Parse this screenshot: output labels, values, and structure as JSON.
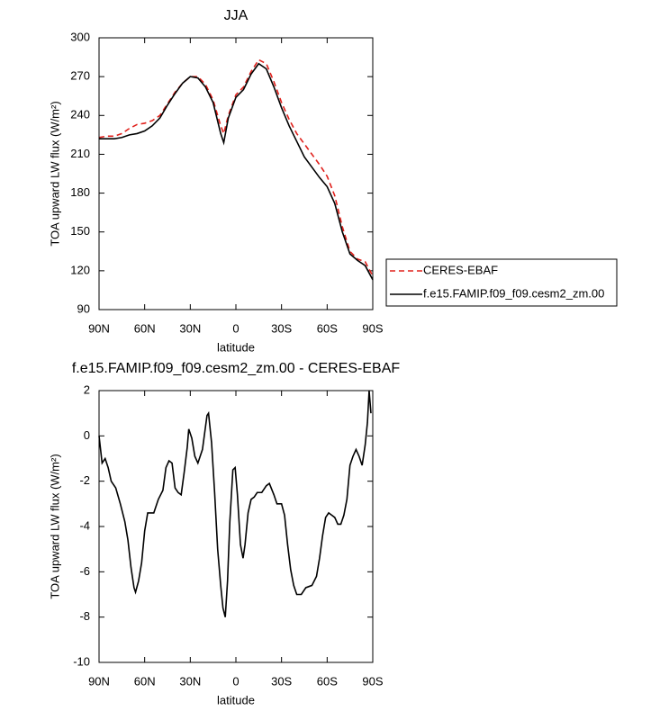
{
  "chart_data": [
    {
      "type": "line",
      "title": "JJA",
      "xlabel": "latitude",
      "ylabel": "TOA upward LW flux (W/m²)",
      "x": [
        90,
        85,
        80,
        75,
        70,
        65,
        60,
        55,
        50,
        45,
        40,
        35,
        30,
        25,
        20,
        15,
        10,
        8,
        5,
        0,
        -5,
        -10,
        -15,
        -20,
        -25,
        -30,
        -35,
        -40,
        -45,
        -50,
        -55,
        -60,
        -65,
        -70,
        -75,
        -80,
        -85,
        -90
      ],
      "xlim": [
        90,
        -90
      ],
      "xticks": [
        {
          "value": 90,
          "label": "90N"
        },
        {
          "value": 60,
          "label": "60N"
        },
        {
          "value": 30,
          "label": "30N"
        },
        0,
        {
          "value": -30,
          "label": "30S"
        },
        {
          "value": -60,
          "label": "60S"
        },
        {
          "value": -90,
          "label": "90S"
        }
      ],
      "ylim": [
        90,
        300
      ],
      "yticks": [
        90,
        120,
        150,
        180,
        210,
        240,
        270,
        300
      ],
      "legend": "right",
      "series": [
        {
          "name": "CERES-EBAF",
          "color": "#e0201b",
          "dash": true,
          "values": [
            223,
            224,
            224,
            226,
            230,
            233,
            234,
            236,
            240,
            249,
            258,
            265,
            270,
            270,
            264,
            252,
            232,
            226,
            240,
            256,
            262,
            274,
            283,
            280,
            266,
            250,
            237,
            226,
            218,
            210,
            202,
            193,
            178,
            154,
            135,
            129,
            127,
            116
          ]
        },
        {
          "name": "f.e15.FAMIP.f09_f09.cesm2_zm.00",
          "color": "#000000",
          "dash": false,
          "values": [
            222,
            222,
            222,
            223,
            225,
            226,
            228,
            232,
            238,
            248,
            257,
            265,
            270,
            269,
            262,
            250,
            226,
            219,
            238,
            254,
            260,
            272,
            280,
            276,
            262,
            246,
            232,
            220,
            208,
            200,
            192,
            185,
            172,
            150,
            133,
            128,
            124,
            113
          ]
        }
      ]
    },
    {
      "type": "line",
      "title": "f.e15.FAMIP.f09_f09.cesm2_zm.00 - CERES-EBAF",
      "xlabel": "latitude",
      "ylabel": "TOA upward LW flux (W/m²)",
      "x": [
        90,
        88,
        86,
        84,
        82,
        79,
        76,
        73,
        71,
        69,
        67,
        66,
        64,
        62,
        60,
        58,
        54,
        51,
        48,
        46,
        44,
        42,
        40,
        38,
        36,
        34,
        32,
        31,
        29,
        27,
        25,
        22,
        19,
        18,
        16,
        14,
        12,
        10,
        8.5,
        7,
        5.5,
        4,
        2,
        0.5,
        -1,
        -3,
        -4.7,
        -6,
        -8,
        -10,
        -12,
        -14,
        -17,
        -20,
        -22,
        -25,
        -27,
        -30,
        -32,
        -34,
        -36,
        -38,
        -40,
        -43,
        -46,
        -50,
        -53,
        -55,
        -57,
        -59,
        -61,
        -63,
        -65,
        -67,
        -69,
        -71,
        -73,
        -75,
        -77,
        -79,
        -81,
        -83,
        -85,
        -86.5,
        -87.6,
        -88.8
      ],
      "xlim": [
        90,
        -90
      ],
      "xticks": [
        {
          "value": 90,
          "label": "90N"
        },
        {
          "value": 60,
          "label": "60N"
        },
        {
          "value": 30,
          "label": "30N"
        },
        0,
        {
          "value": -30,
          "label": "30S"
        },
        {
          "value": -60,
          "label": "60S"
        },
        {
          "value": -90,
          "label": "90S"
        }
      ],
      "ylim": [
        -10,
        2
      ],
      "yticks": [
        -10,
        -8,
        -6,
        -4,
        -2,
        0,
        2
      ],
      "series": [
        {
          "color": "#000000",
          "values": [
            0,
            -1.2,
            -1.0,
            -1.4,
            -2.0,
            -2.3,
            -3.0,
            -3.8,
            -4.6,
            -5.8,
            -6.7,
            -6.9,
            -6.4,
            -5.6,
            -4.2,
            -3.4,
            -3.4,
            -2.8,
            -2.4,
            -1.4,
            -1.1,
            -1.2,
            -2.3,
            -2.5,
            -2.6,
            -1.6,
            -0.5,
            0.3,
            -0.1,
            -0.9,
            -1.2,
            -0.6,
            0.9,
            1.0,
            -0.3,
            -2.5,
            -5.0,
            -6.6,
            -7.6,
            -8.0,
            -6.4,
            -3.8,
            -1.5,
            -1.4,
            -2.6,
            -4.8,
            -5.4,
            -4.8,
            -3.4,
            -2.8,
            -2.7,
            -2.5,
            -2.5,
            -2.2,
            -2.1,
            -2.6,
            -3.0,
            -3.0,
            -3.5,
            -4.8,
            -5.9,
            -6.6,
            -7.0,
            -7.0,
            -6.7,
            -6.6,
            -6.2,
            -5.4,
            -4.4,
            -3.6,
            -3.4,
            -3.5,
            -3.6,
            -3.9,
            -3.9,
            -3.5,
            -2.8,
            -1.3,
            -0.9,
            -0.6,
            -0.9,
            -1.3,
            -0.4,
            0.6,
            2.0,
            1.0
          ]
        }
      ]
    }
  ]
}
